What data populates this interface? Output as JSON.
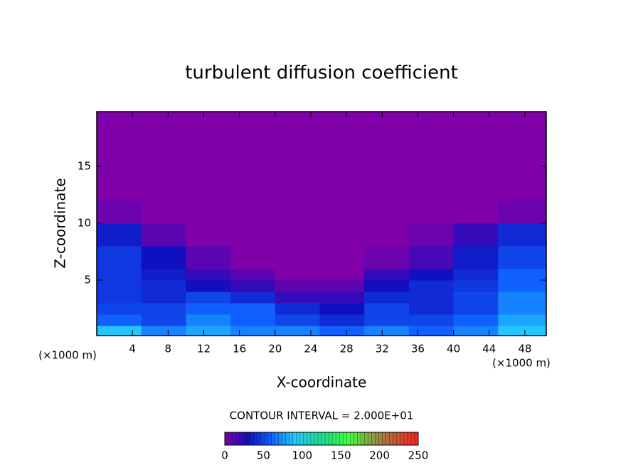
{
  "chart_data": {
    "type": "heatmap",
    "title": "turbulent diffusion coefficient",
    "x_label": "X-coordinate",
    "y_label": "Z-coordinate",
    "x_unit_label": "(×1000 m)",
    "x_unit_label_right": "(×1000 m)",
    "contour_interval_label": "CONTOUR INTERVAL = 2.000E+01",
    "xlim": [
      0,
      50.4
    ],
    "ylim": [
      0.125,
      19.8
    ],
    "xticks": [
      4,
      8,
      12,
      16,
      20,
      24,
      28,
      32,
      36,
      40,
      44,
      48
    ],
    "yticks": [
      5,
      10,
      15
    ],
    "xbins": [
      0,
      5,
      10,
      15,
      20,
      25,
      30,
      35,
      40,
      45,
      50.4
    ],
    "ybins": [
      0.125,
      1,
      2,
      3,
      4,
      5,
      6,
      8,
      10,
      12,
      19.8
    ],
    "z": [
      [
        90,
        70,
        80,
        70,
        70,
        60,
        70,
        60,
        70,
        90
      ],
      [
        60,
        50,
        70,
        60,
        50,
        40,
        50,
        50,
        60,
        80
      ],
      [
        50,
        50,
        60,
        60,
        40,
        30,
        50,
        40,
        50,
        70
      ],
      [
        45,
        40,
        50,
        40,
        20,
        20,
        40,
        40,
        50,
        70
      ],
      [
        45,
        40,
        30,
        20,
        10,
        10,
        30,
        40,
        45,
        60
      ],
      [
        45,
        35,
        20,
        10,
        0,
        0,
        20,
        30,
        40,
        60
      ],
      [
        45,
        30,
        10,
        0,
        0,
        0,
        5,
        15,
        35,
        50
      ],
      [
        35,
        10,
        0,
        0,
        0,
        0,
        0,
        5,
        20,
        40
      ],
      [
        5,
        0,
        0,
        0,
        0,
        0,
        0,
        0,
        0,
        5
      ],
      [
        0,
        0,
        0,
        0,
        0,
        0,
        0,
        0,
        0,
        0
      ]
    ],
    "clim": [
      0,
      250
    ],
    "cticks": [
      0,
      50,
      100,
      150,
      200,
      250
    ],
    "colorscale": [
      [
        0,
        "#8000aa"
      ],
      [
        30,
        "#1010c0"
      ],
      [
        60,
        "#1060ff"
      ],
      [
        90,
        "#20c8ff"
      ],
      [
        130,
        "#20e080"
      ],
      [
        160,
        "#40ff40"
      ],
      [
        200,
        "#a08040"
      ],
      [
        250,
        "#ff2020"
      ]
    ]
  }
}
